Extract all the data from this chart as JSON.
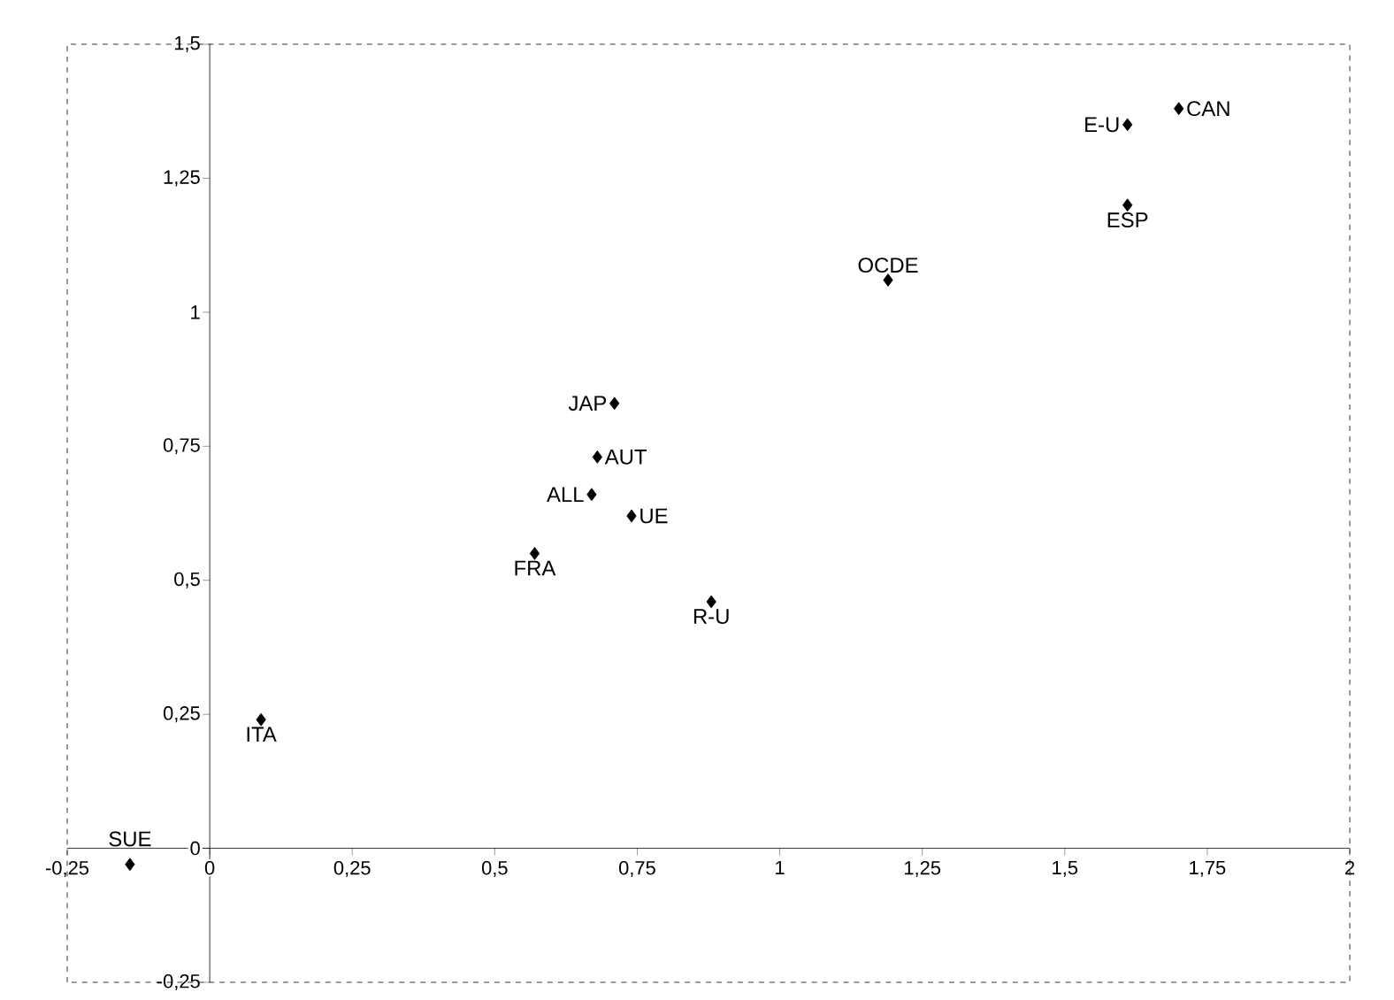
{
  "chart_data": {
    "type": "scatter",
    "marker": "diamond",
    "grid": false,
    "xlim": [
      -0.25,
      2
    ],
    "ylim": [
      -0.25,
      1.5
    ],
    "xticks": [
      {
        "value": -0.25,
        "label": "-0,25"
      },
      0,
      {
        "value": 0.25,
        "label": "0,25"
      },
      {
        "value": 0.5,
        "label": "0,5"
      },
      {
        "value": 0.75,
        "label": "0,75"
      },
      1,
      {
        "value": 1.25,
        "label": "1,25"
      },
      {
        "value": 1.5,
        "label": "1,5"
      },
      {
        "value": 1.75,
        "label": "1,75"
      },
      2
    ],
    "yticks": [
      {
        "value": -0.25,
        "label": "-0,25"
      },
      0,
      {
        "value": 0.25,
        "label": "0,25"
      },
      {
        "value": 0.5,
        "label": "0,5"
      },
      {
        "value": 0.75,
        "label": "0,75"
      },
      1,
      {
        "value": 1.25,
        "label": "1,25"
      },
      {
        "value": 1.5,
        "label": "1,5"
      }
    ],
    "series": [
      {
        "color": "#000000",
        "x": [
          -0.14,
          0.09,
          0.57,
          0.67,
          0.68,
          0.71,
          0.74,
          0.88,
          1.19,
          1.61,
          1.7,
          1.61
        ],
        "values": [
          -0.03,
          0.24,
          0.55,
          0.66,
          0.73,
          0.83,
          0.62,
          0.46,
          1.06,
          1.35,
          1.38,
          1.2
        ]
      }
    ],
    "annotations": [
      {
        "text": "SUE",
        "x": -0.14,
        "y": -0.03
      },
      {
        "text": "ITA",
        "x": 0.09,
        "y": 0.24
      },
      {
        "text": "FRA",
        "x": 0.57,
        "y": 0.55
      },
      {
        "text": "ALL",
        "x": 0.67,
        "y": 0.66
      },
      {
        "text": "AUT",
        "x": 0.68,
        "y": 0.73
      },
      {
        "text": "JAP",
        "x": 0.71,
        "y": 0.83
      },
      {
        "text": "UE",
        "x": 0.74,
        "y": 0.62
      },
      {
        "text": "R-U",
        "x": 0.88,
        "y": 0.46
      },
      {
        "text": "OCDE",
        "x": 1.19,
        "y": 1.06
      },
      {
        "text": "E-U",
        "x": 1.61,
        "y": 1.35
      },
      {
        "text": "CAN",
        "x": 1.7,
        "y": 1.38
      },
      {
        "text": "ESP",
        "x": 1.61,
        "y": 1.2
      }
    ]
  }
}
